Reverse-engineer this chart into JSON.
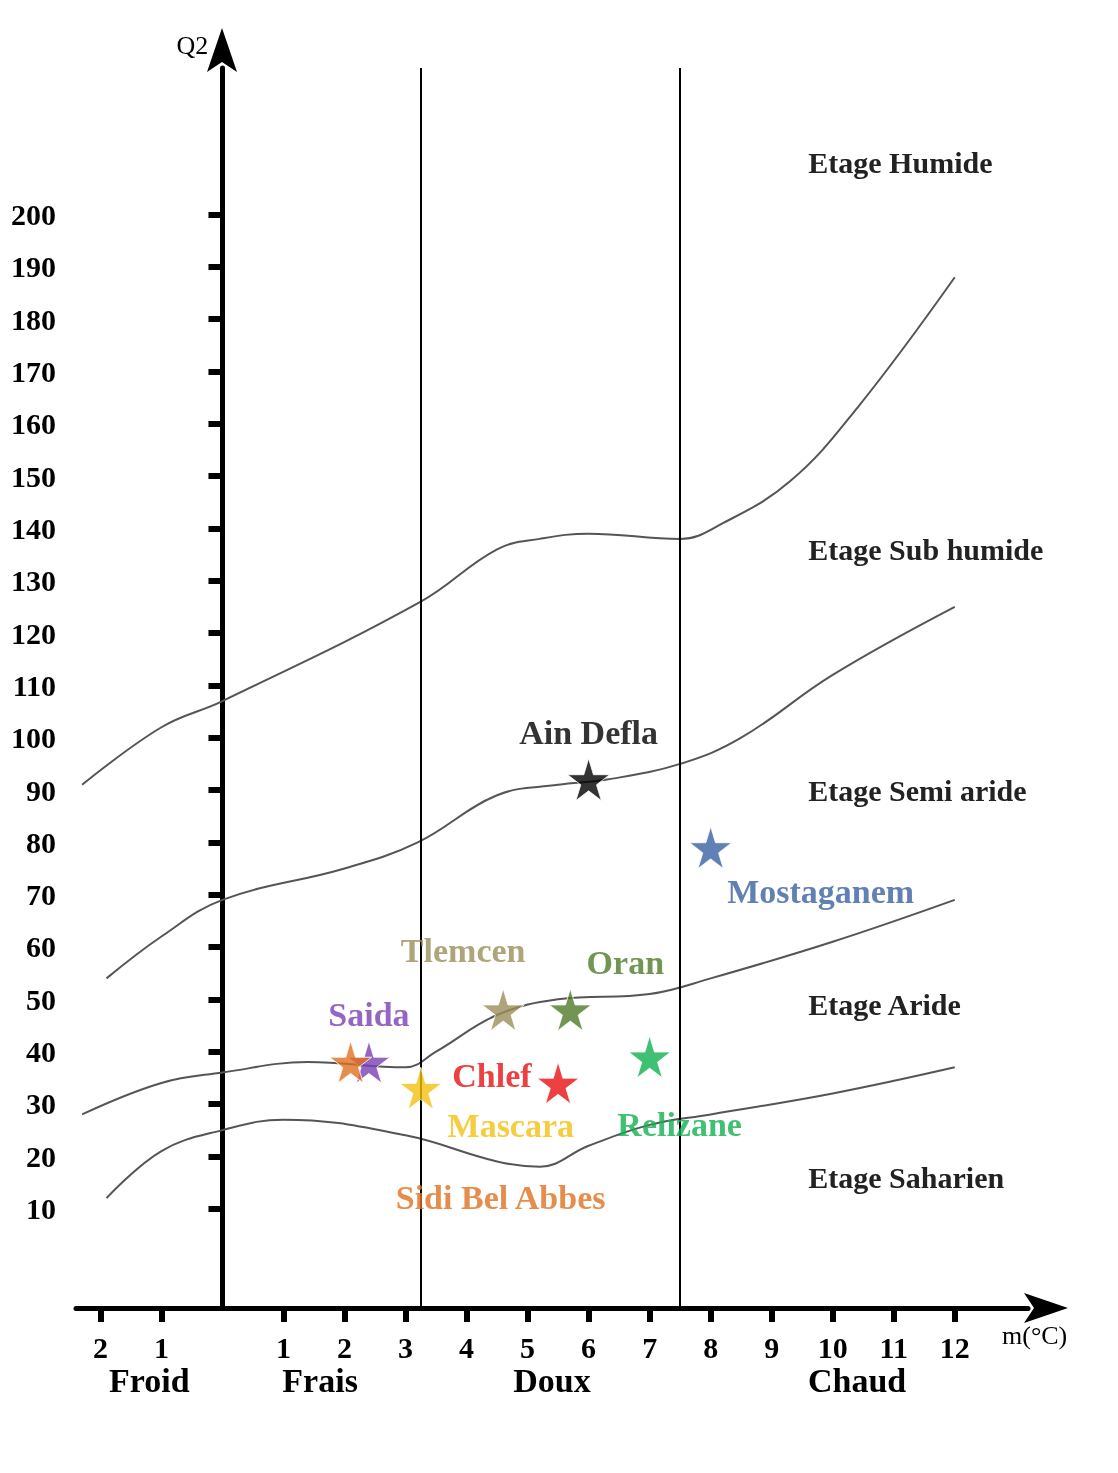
{
  "chart_data": {
    "type": "scatter",
    "xlabel": "m(°C)",
    "ylabel": "Q2",
    "xlim": [
      -2.4,
      13.2
    ],
    "ylim": [
      -9,
      228
    ],
    "xticks": [
      {
        "value": -2,
        "label": "2"
      },
      {
        "value": -1,
        "label": "1"
      },
      1,
      2,
      3,
      4,
      5,
      6,
      7,
      8,
      9,
      10,
      11,
      12
    ],
    "yticks": [
      10,
      20,
      30,
      40,
      50,
      60,
      70,
      80,
      90,
      100,
      110,
      120,
      130,
      140,
      150,
      160,
      170,
      180,
      190,
      200
    ],
    "grid": false,
    "marker": "star",
    "ref_lines": [
      {
        "axis": "x",
        "value": 3.25,
        "color": "#000000"
      },
      {
        "axis": "x",
        "value": 7.5,
        "color": "#000000"
      }
    ],
    "annotations": [
      "Etage Humide",
      "Etage Sub humide",
      "Etage Semi aride",
      "Etage Aride",
      "Etage Saharien",
      "Froid",
      "Frais",
      "Doux",
      "Chaud"
    ],
    "series": [
      {
        "type": "line",
        "marker": "none",
        "color": "#555555",
        "x": [
          -2.3,
          -1,
          0,
          3.25,
          4.5,
          5.2,
          6,
          7.5,
          8.2,
          9.3,
          10.4,
          12
        ],
        "values": [
          91,
          102,
          107,
          126,
          136,
          138,
          139,
          138,
          141,
          149,
          163,
          188
        ]
      },
      {
        "type": "line",
        "marker": "none",
        "color": "#555555",
        "x": [
          -1.9,
          -1,
          0,
          2,
          3.2,
          4.5,
          5.5,
          6.3,
          7.5,
          8.5,
          10,
          12
        ],
        "values": [
          54,
          62,
          69,
          75,
          80,
          89,
          91,
          92,
          95,
          100,
          112,
          125
        ]
      },
      {
        "type": "line",
        "marker": "none",
        "color": "#555555",
        "x": [
          -2.3,
          -1,
          0,
          1.4,
          3,
          3.5,
          4.5,
          5.5,
          7,
          8,
          10,
          12
        ],
        "values": [
          28,
          34,
          36,
          38,
          37,
          40,
          47,
          50,
          51,
          54,
          61,
          69
        ]
      },
      {
        "type": "line",
        "marker": "none",
        "color": "#555555",
        "x": [
          -1.9,
          -1,
          0,
          1,
          3,
          4.5,
          5.2,
          6,
          7,
          8,
          10,
          12
        ],
        "values": [
          12,
          21,
          25,
          27,
          24,
          19,
          18,
          22,
          26,
          28,
          32,
          37
        ]
      },
      {
        "name": "Saida",
        "color": "#7b3fb5",
        "x": [
          2.4
        ],
        "values": [
          38
        ]
      },
      {
        "name": "Sidi Bel Abbes",
        "color": "#e07020",
        "x": [
          2.1
        ],
        "values": [
          38
        ]
      },
      {
        "name": "Mascara",
        "color": "#f5c010",
        "x": [
          3.25
        ],
        "values": [
          33
        ]
      },
      {
        "name": "Tlemcen",
        "color": "#9a8f5a",
        "x": [
          4.6
        ],
        "values": [
          48
        ]
      },
      {
        "name": "Chlef",
        "color": "#e81010",
        "x": [
          5.5
        ],
        "values": [
          34
        ]
      },
      {
        "name": "Oran",
        "color": "#4f7a28",
        "x": [
          5.7
        ],
        "values": [
          48
        ]
      },
      {
        "name": "Relizane",
        "color": "#10b050",
        "x": [
          7
        ],
        "values": [
          39
        ]
      },
      {
        "name": "Ain Defla",
        "color": "#000000",
        "x": [
          6
        ],
        "values": [
          92
        ]
      },
      {
        "name": "Mostaganem",
        "color": "#3a60a0",
        "x": [
          8
        ],
        "values": [
          79
        ]
      }
    ]
  }
}
